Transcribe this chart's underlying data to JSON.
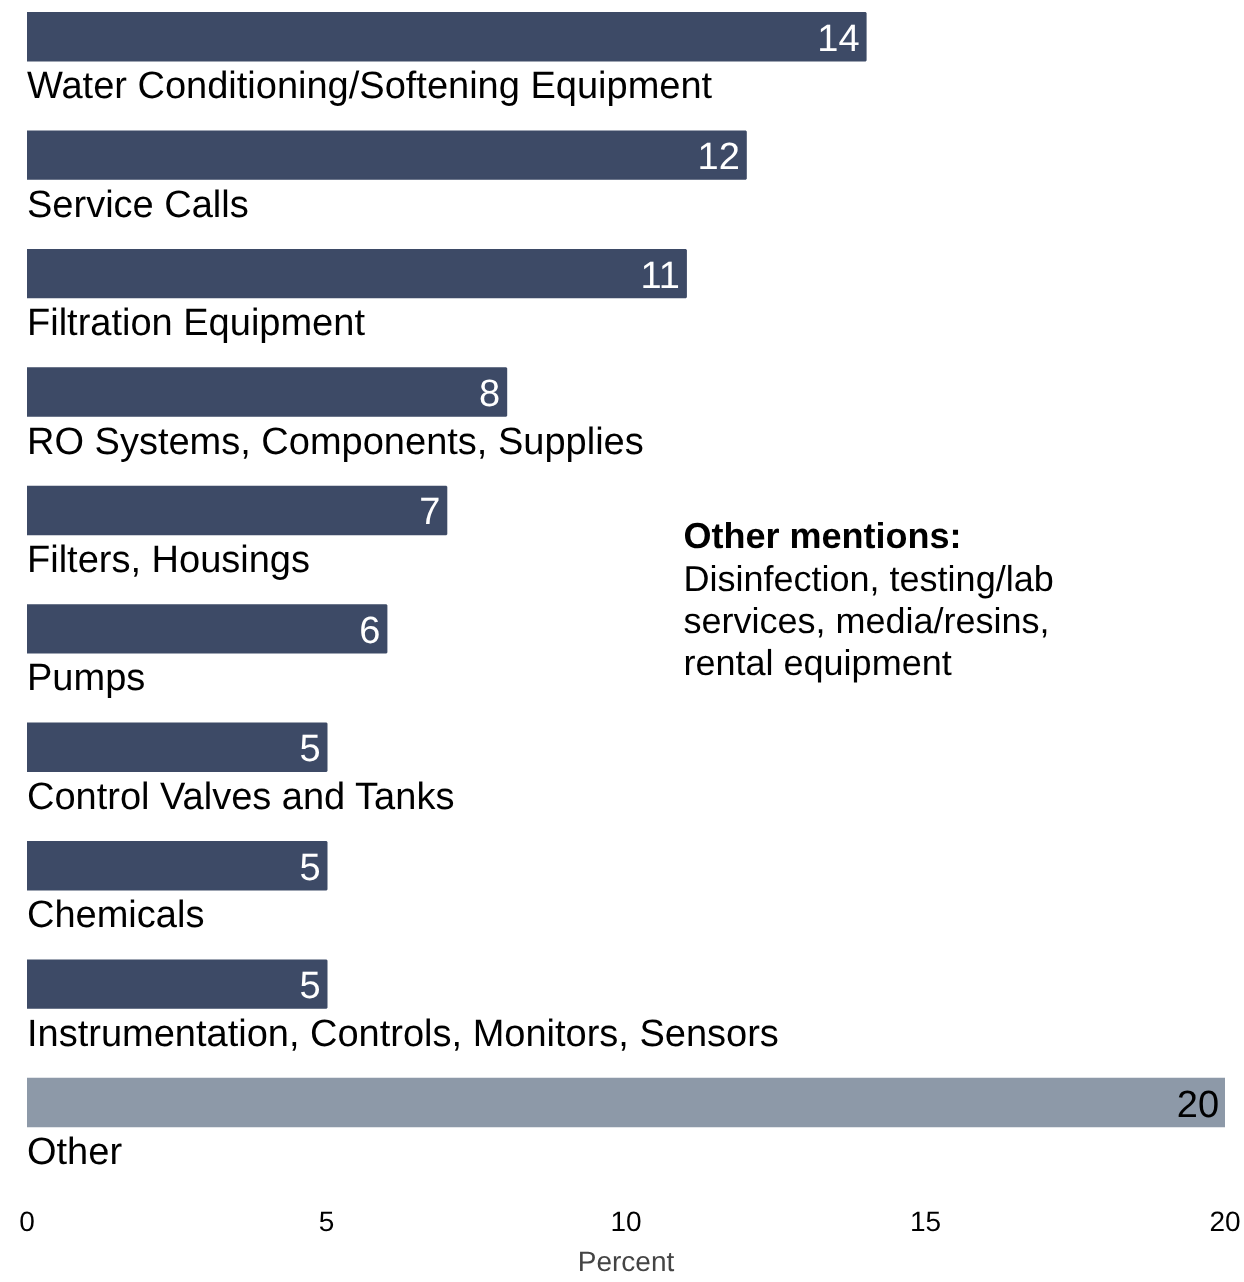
{
  "chart_data": {
    "type": "bar",
    "orientation": "horizontal",
    "xlabel": "Percent",
    "categories": [
      "Water Conditioning/Softening Equipment",
      "Service Calls",
      "Filtration Equipment",
      "RO Systems, Components, Supplies",
      "Filters, Housings",
      "Pumps",
      "Control Valves and Tanks",
      "Chemicals",
      "Instrumentation, Controls, Monitors, Sensors",
      "Other"
    ],
    "values": [
      14,
      12,
      11,
      8,
      7,
      6,
      5,
      5,
      5,
      20
    ],
    "colors": [
      "#3d4a66",
      "#3d4a66",
      "#3d4a66",
      "#3d4a66",
      "#3d4a66",
      "#3d4a66",
      "#3d4a66",
      "#3d4a66",
      "#3d4a66",
      "#8d99a8"
    ],
    "xlim": [
      0,
      20
    ],
    "xticks": [
      0,
      5,
      10,
      15,
      20
    ],
    "data_labels": true,
    "grid": false,
    "annotations": [
      "Other mentions:",
      "Disinfection, testing/lab\nservices, media/resins,\nrental equipment"
    ]
  }
}
